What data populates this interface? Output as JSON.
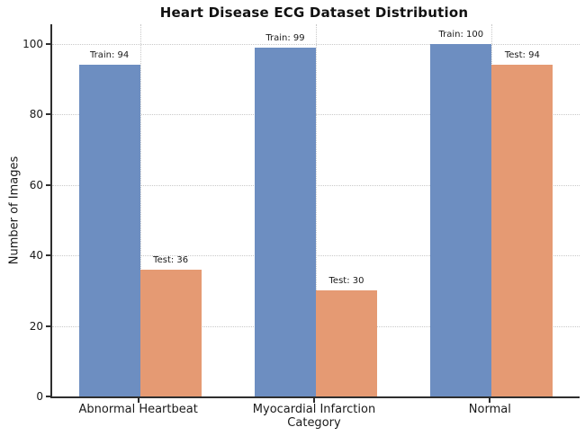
{
  "chart_data": {
    "type": "bar",
    "title": "Heart Disease ECG Dataset Distribution",
    "xlabel": "Category",
    "ylabel": "Number of Images",
    "categories": [
      "Abnormal Heartbeat",
      "Myocardial Infarction",
      "Normal"
    ],
    "series": [
      {
        "name": "Train",
        "color": "#6d8ec1",
        "values": [
          94,
          99,
          100
        ]
      },
      {
        "name": "Test",
        "color": "#e59a73",
        "values": [
          36,
          30,
          94
        ]
      }
    ],
    "bar_labels": [
      [
        "Train: 94",
        "Test: 36"
      ],
      [
        "Train: 99",
        "Test: 30"
      ],
      [
        "Train: 100",
        "Test: 94"
      ]
    ],
    "yticks": [
      0,
      20,
      40,
      60,
      80,
      100
    ],
    "ylim": [
      0,
      105.6
    ],
    "grid": {
      "style": "dotted",
      "color": "#c9c9c9",
      "x": true,
      "y": true
    },
    "legend_position": "none",
    "colors": {
      "background": "#ffffff",
      "spine": "#2e2e2e",
      "text": "#1a1a1a",
      "grid": "#c9c9c9",
      "train_bar": "#6d8ec1",
      "test_bar": "#e59a73"
    }
  }
}
